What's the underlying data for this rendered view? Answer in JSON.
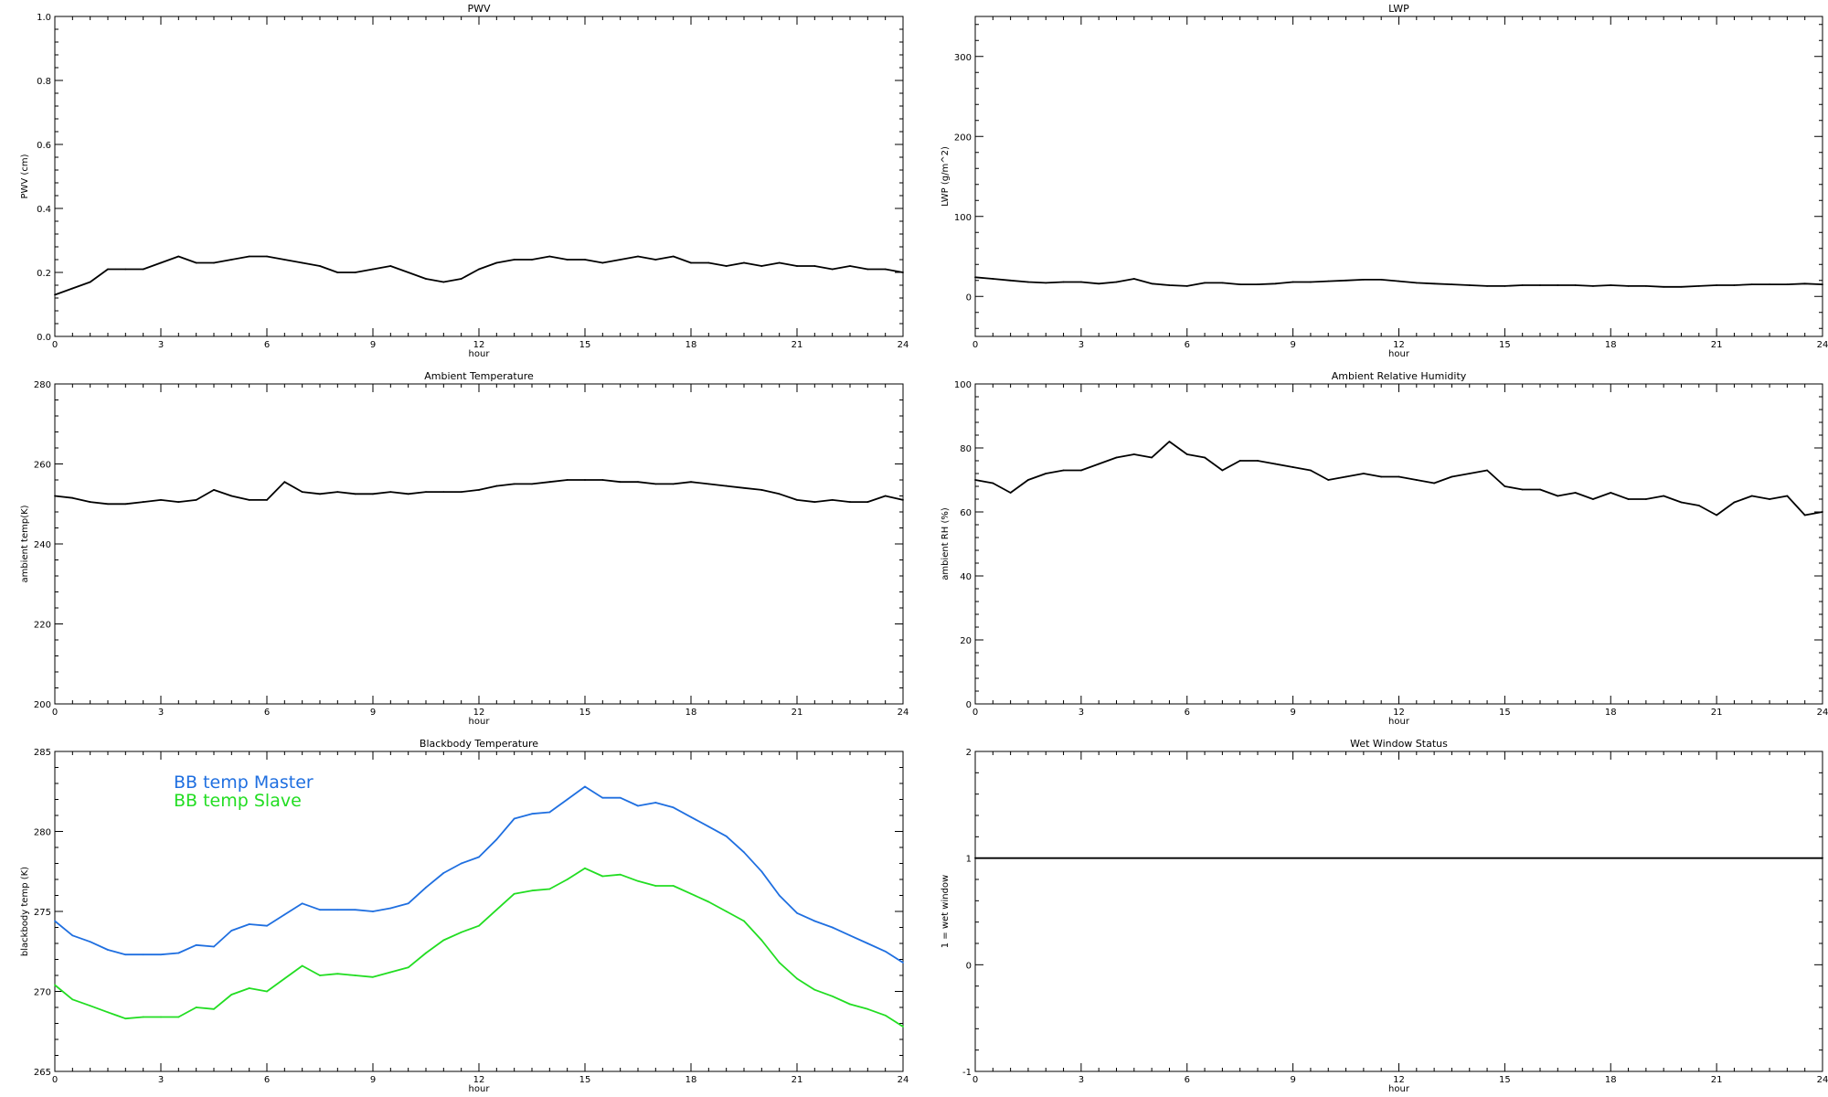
{
  "chart_data": [
    {
      "type": "line",
      "title": "PWV",
      "xlabel": "hour",
      "ylabel": "PWV (cm)",
      "xlim": [
        0,
        24
      ],
      "ylim": [
        0,
        1.0
      ],
      "xticks": [
        0,
        3,
        6,
        9,
        12,
        15,
        18,
        21,
        24
      ],
      "yticks": [
        0.0,
        0.2,
        0.4,
        0.6,
        0.8,
        1.0
      ],
      "ytick_labels": [
        "0.0",
        "0.2",
        "0.4",
        "0.6",
        "0.8",
        "1.0"
      ],
      "series": [
        {
          "color": "#000000",
          "x": [
            0,
            0.5,
            1,
            1.5,
            2,
            2.5,
            3,
            3.5,
            4,
            4.5,
            5,
            5.5,
            6,
            6.5,
            7,
            7.5,
            8,
            8.5,
            9,
            9.5,
            10,
            10.5,
            11,
            11.5,
            12,
            12.5,
            13,
            13.5,
            14,
            14.5,
            15,
            15.5,
            16,
            16.5,
            17,
            17.5,
            18,
            18.5,
            19,
            19.5,
            20,
            20.5,
            21,
            21.5,
            22,
            22.5,
            23,
            23.5,
            24
          ],
          "values": [
            0.13,
            0.15,
            0.17,
            0.21,
            0.21,
            0.21,
            0.23,
            0.25,
            0.23,
            0.23,
            0.24,
            0.25,
            0.25,
            0.24,
            0.23,
            0.22,
            0.2,
            0.2,
            0.21,
            0.22,
            0.2,
            0.18,
            0.17,
            0.18,
            0.21,
            0.23,
            0.24,
            0.24,
            0.25,
            0.24,
            0.24,
            0.23,
            0.24,
            0.25,
            0.24,
            0.25,
            0.23,
            0.23,
            0.22,
            0.23,
            0.22,
            0.23,
            0.22,
            0.22,
            0.21,
            0.22,
            0.21,
            0.21,
            0.2
          ]
        }
      ]
    },
    {
      "type": "line",
      "title": "LWP",
      "xlabel": "hour",
      "ylabel": "LWP (g/m^2)",
      "xlim": [
        0,
        24
      ],
      "ylim": [
        -50,
        350
      ],
      "xticks": [
        0,
        3,
        6,
        9,
        12,
        15,
        18,
        21,
        24
      ],
      "yticks": [
        0,
        100,
        200,
        300
      ],
      "ytick_labels": [
        "0",
        "100",
        "200",
        "300"
      ],
      "series": [
        {
          "color": "#000000",
          "x": [
            0,
            0.5,
            1,
            1.5,
            2,
            2.5,
            3,
            3.5,
            4,
            4.5,
            5,
            5.5,
            6,
            6.5,
            7,
            7.5,
            8,
            8.5,
            9,
            9.5,
            10,
            10.5,
            11,
            11.5,
            12,
            12.5,
            13,
            13.5,
            14,
            14.5,
            15,
            15.5,
            16,
            16.5,
            17,
            17.5,
            18,
            18.5,
            19,
            19.5,
            20,
            20.5,
            21,
            21.5,
            22,
            22.5,
            23,
            23.5,
            24
          ],
          "values": [
            24,
            22,
            20,
            18,
            17,
            18,
            18,
            16,
            18,
            22,
            16,
            14,
            13,
            17,
            17,
            15,
            15,
            16,
            18,
            18,
            19,
            20,
            21,
            21,
            19,
            17,
            16,
            15,
            14,
            13,
            13,
            14,
            14,
            14,
            14,
            13,
            14,
            13,
            13,
            12,
            12,
            13,
            14,
            14,
            15,
            15,
            15,
            16,
            15
          ]
        }
      ]
    },
    {
      "type": "line",
      "title": "Ambient Temperature",
      "xlabel": "hour",
      "ylabel": "ambient temp(K)",
      "xlim": [
        0,
        24
      ],
      "ylim": [
        200,
        280
      ],
      "xticks": [
        0,
        3,
        6,
        9,
        12,
        15,
        18,
        21,
        24
      ],
      "yticks": [
        200,
        220,
        240,
        260,
        280
      ],
      "ytick_labels": [
        "200",
        "220",
        "240",
        "260",
        "280"
      ],
      "series": [
        {
          "color": "#000000",
          "x": [
            0,
            0.5,
            1,
            1.5,
            2,
            2.5,
            3,
            3.5,
            4,
            4.5,
            5,
            5.5,
            6,
            6.5,
            7,
            7.5,
            8,
            8.5,
            9,
            9.5,
            10,
            10.5,
            11,
            11.5,
            12,
            12.5,
            13,
            13.5,
            14,
            14.5,
            15,
            15.5,
            16,
            16.5,
            17,
            17.5,
            18,
            18.5,
            19,
            19.5,
            20,
            20.5,
            21,
            21.5,
            22,
            22.5,
            23,
            23.5,
            24
          ],
          "values": [
            252,
            251.5,
            250.5,
            250,
            250,
            250.5,
            251,
            250.5,
            251,
            253.5,
            252,
            251,
            251,
            255.5,
            253,
            252.5,
            253,
            252.5,
            252.5,
            253,
            252.5,
            253,
            253,
            253,
            253.5,
            254.5,
            255,
            255,
            255.5,
            256,
            256,
            256,
            255.5,
            255.5,
            255,
            255,
            255.5,
            255,
            254.5,
            254,
            253.5,
            252.5,
            251,
            250.5,
            251,
            250.5,
            250.5,
            252,
            251
          ]
        }
      ]
    },
    {
      "type": "line",
      "title": "Ambient Relative Humidity",
      "xlabel": "hour",
      "ylabel": "ambient RH (%)",
      "xlim": [
        0,
        24
      ],
      "ylim": [
        0,
        100
      ],
      "xticks": [
        0,
        3,
        6,
        9,
        12,
        15,
        18,
        21,
        24
      ],
      "yticks": [
        0,
        20,
        40,
        60,
        80,
        100
      ],
      "ytick_labels": [
        "0",
        "20",
        "40",
        "60",
        "80",
        "100"
      ],
      "series": [
        {
          "color": "#000000",
          "x": [
            0,
            0.5,
            1,
            1.5,
            2,
            2.5,
            3,
            3.5,
            4,
            4.5,
            5,
            5.5,
            6,
            6.5,
            7,
            7.5,
            8,
            8.5,
            9,
            9.5,
            10,
            10.5,
            11,
            11.5,
            12,
            12.5,
            13,
            13.5,
            14,
            14.5,
            15,
            15.5,
            16,
            16.5,
            17,
            17.5,
            18,
            18.5,
            19,
            19.5,
            20,
            20.5,
            21,
            21.5,
            22,
            22.5,
            23,
            23.5,
            24
          ],
          "values": [
            70,
            69,
            66,
            70,
            72,
            73,
            73,
            75,
            77,
            78,
            77,
            82,
            78,
            77,
            73,
            76,
            76,
            75,
            74,
            73,
            70,
            71,
            72,
            71,
            71,
            70,
            69,
            71,
            72,
            73,
            68,
            67,
            67,
            65,
            66,
            64,
            66,
            64,
            64,
            65,
            63,
            62,
            59,
            63,
            65,
            64,
            65,
            59,
            60
          ]
        }
      ]
    },
    {
      "type": "line",
      "title": "Blackbody Temperature",
      "xlabel": "hour",
      "ylabel": "blackbody temp (K)",
      "xlim": [
        0,
        24
      ],
      "ylim": [
        265,
        285
      ],
      "xticks": [
        0,
        3,
        6,
        9,
        12,
        15,
        18,
        21,
        24
      ],
      "yticks": [
        265,
        270,
        275,
        280,
        285
      ],
      "ytick_labels": [
        "265",
        "270",
        "275",
        "280",
        "285"
      ],
      "legend": "top-left",
      "series": [
        {
          "name": "BB temp Master",
          "color": "#1f6fe0",
          "x": [
            0,
            0.5,
            1,
            1.5,
            2,
            2.5,
            3,
            3.5,
            4,
            4.5,
            5,
            5.5,
            6,
            6.5,
            7,
            7.5,
            8,
            8.5,
            9,
            9.5,
            10,
            10.5,
            11,
            11.5,
            12,
            12.5,
            13,
            13.5,
            14,
            14.5,
            15,
            15.5,
            16,
            16.5,
            17,
            17.5,
            18,
            18.5,
            19,
            19.5,
            20,
            20.5,
            21,
            21.5,
            22,
            22.5,
            23,
            23.5,
            24
          ],
          "values": [
            274.4,
            273.5,
            273.1,
            272.6,
            272.3,
            272.3,
            272.3,
            272.4,
            272.9,
            272.8,
            273.8,
            274.2,
            274.1,
            274.8,
            275.5,
            275.1,
            275.1,
            275.1,
            275.0,
            275.2,
            275.5,
            276.5,
            277.4,
            278.0,
            278.4,
            279.5,
            280.8,
            281.1,
            281.2,
            282.0,
            282.8,
            282.1,
            282.1,
            281.6,
            281.8,
            281.5,
            280.9,
            280.3,
            279.7,
            278.7,
            277.5,
            276.0,
            274.9,
            274.4,
            274.0,
            273.5,
            273.0,
            272.5,
            271.8
          ]
        },
        {
          "name": "BB temp Slave",
          "color": "#22dd22",
          "x": [
            0,
            0.5,
            1,
            1.5,
            2,
            2.5,
            3,
            3.5,
            4,
            4.5,
            5,
            5.5,
            6,
            6.5,
            7,
            7.5,
            8,
            8.5,
            9,
            9.5,
            10,
            10.5,
            11,
            11.5,
            12,
            12.5,
            13,
            13.5,
            14,
            14.5,
            15,
            15.5,
            16,
            16.5,
            17,
            17.5,
            18,
            18.5,
            19,
            19.5,
            20,
            20.5,
            21,
            21.5,
            22,
            22.5,
            23,
            23.5,
            24
          ],
          "values": [
            270.4,
            269.5,
            269.1,
            268.7,
            268.3,
            268.4,
            268.4,
            268.4,
            269.0,
            268.9,
            269.8,
            270.2,
            270.0,
            270.8,
            271.6,
            271.0,
            271.1,
            271.0,
            270.9,
            271.2,
            271.5,
            272.4,
            273.2,
            273.7,
            274.1,
            275.1,
            276.1,
            276.3,
            276.4,
            277.0,
            277.7,
            277.2,
            277.3,
            276.9,
            276.6,
            276.6,
            276.1,
            275.6,
            275.0,
            274.4,
            273.2,
            271.8,
            270.8,
            270.1,
            269.7,
            269.2,
            268.9,
            268.5,
            267.8
          ]
        }
      ]
    },
    {
      "type": "line",
      "title": "Wet Window Status",
      "xlabel": "hour",
      "ylabel": "1 = wet window",
      "xlim": [
        0,
        24
      ],
      "ylim": [
        -1,
        2
      ],
      "xticks": [
        0,
        3,
        6,
        9,
        12,
        15,
        18,
        21,
        24
      ],
      "yticks": [
        -1,
        0,
        1,
        2
      ],
      "ytick_labels": [
        "-1",
        "0",
        "1",
        "2"
      ],
      "series": [
        {
          "color": "#000000",
          "x": [
            0,
            24
          ],
          "values": [
            1,
            1
          ]
        }
      ]
    }
  ]
}
